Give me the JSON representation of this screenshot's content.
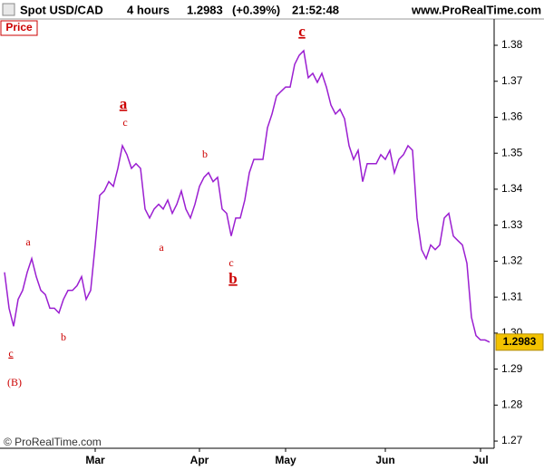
{
  "chart_data": {
    "type": "line",
    "title": "Spot USD/CAD",
    "interval": "4 hours",
    "header_price": "1.2983",
    "header_change": "(+0.39%)",
    "time": "21:52:48",
    "site": "www.ProRealTime.com",
    "copyright": "© ProRealTime.com",
    "panel_label": "Price",
    "last_price_label": "1.2983",
    "annotations": [
      "c",
      "(B)",
      "a",
      "b",
      "a",
      "c",
      "a",
      "b",
      "c",
      "b",
      "c"
    ],
    "categories": [
      null,
      null,
      null,
      null,
      null,
      null,
      null,
      null,
      null,
      null,
      null,
      null,
      null,
      null,
      null,
      null,
      null,
      null,
      null,
      null,
      "Mar",
      null,
      null,
      null,
      null,
      null,
      null,
      null,
      null,
      null,
      null,
      null,
      null,
      null,
      null,
      null,
      null,
      null,
      null,
      null,
      null,
      null,
      null,
      "Apr",
      null,
      null,
      null,
      null,
      null,
      null,
      null,
      null,
      null,
      null,
      null,
      null,
      null,
      null,
      null,
      null,
      null,
      null,
      "May",
      null,
      null,
      null,
      null,
      null,
      null,
      null,
      null,
      null,
      null,
      null,
      null,
      null,
      null,
      null,
      null,
      null,
      null,
      null,
      null,
      null,
      "Jun",
      null,
      null,
      null,
      null,
      null,
      null,
      null,
      null,
      null,
      null,
      null,
      null,
      null,
      null,
      null,
      null,
      null,
      null,
      null,
      null,
      "Jul",
      null,
      null
    ],
    "series": [
      {
        "name": "Spot USD/CAD",
        "color": "#9b1fd1",
        "values": [
          1.3169,
          1.3069,
          1.3019,
          1.3094,
          1.3119,
          1.3169,
          1.3207,
          1.3157,
          1.3119,
          1.3107,
          1.3069,
          1.3069,
          1.3056,
          1.3094,
          1.3119,
          1.3119,
          1.3132,
          1.3157,
          1.3094,
          1.3119,
          1.3245,
          1.3383,
          1.3395,
          1.3421,
          1.3408,
          1.3458,
          1.3521,
          1.3496,
          1.3458,
          1.3471,
          1.3458,
          1.3345,
          1.332,
          1.3345,
          1.3358,
          1.3345,
          1.337,
          1.3333,
          1.3358,
          1.3395,
          1.3345,
          1.332,
          1.3358,
          1.3408,
          1.3433,
          1.3446,
          1.3421,
          1.3433,
          1.3345,
          1.3333,
          1.327,
          1.332,
          1.332,
          1.337,
          1.3446,
          1.3483,
          1.3483,
          1.3483,
          1.3571,
          1.3609,
          1.3659,
          1.3672,
          1.3684,
          1.3684,
          1.3747,
          1.3772,
          1.3785,
          1.371,
          1.3722,
          1.3697,
          1.3722,
          1.3684,
          1.3634,
          1.3609,
          1.3622,
          1.3596,
          1.3521,
          1.3483,
          1.3508,
          1.3421,
          1.3471,
          1.3471,
          1.3471,
          1.3496,
          1.3483,
          1.3508,
          1.3446,
          1.3483,
          1.3496,
          1.3521,
          1.3508,
          1.332,
          1.3232,
          1.3207,
          1.3245,
          1.3232,
          1.3245,
          1.332,
          1.3333,
          1.327,
          1.3257,
          1.3245,
          1.3194,
          1.3044,
          1.2993,
          1.2981,
          1.2981,
          1.2975
        ]
      }
    ],
    "ylim": [
      1.268,
      1.3873
    ],
    "yticks": [
      1.27,
      1.28,
      1.29,
      {
        "value": 1.3,
        "label": "1.30"
      },
      1.31,
      1.32,
      1.33,
      1.34,
      1.35,
      1.36,
      1.37,
      1.38
    ],
    "grid": false
  }
}
